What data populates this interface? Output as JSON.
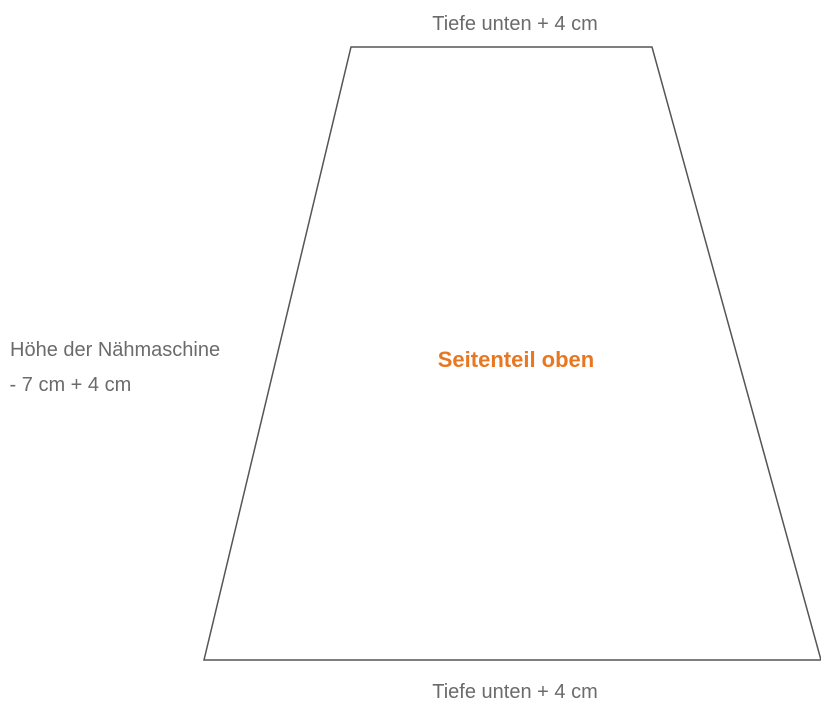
{
  "labels": {
    "top": "Tiefe unten + 4 cm",
    "bottom": "Tiefe unten + 4 cm",
    "side_line1": "Höhe der Nähmaschine",
    "side_line2": " - 7 cm + 4 cm",
    "center": "Seitenteil oben"
  }
}
